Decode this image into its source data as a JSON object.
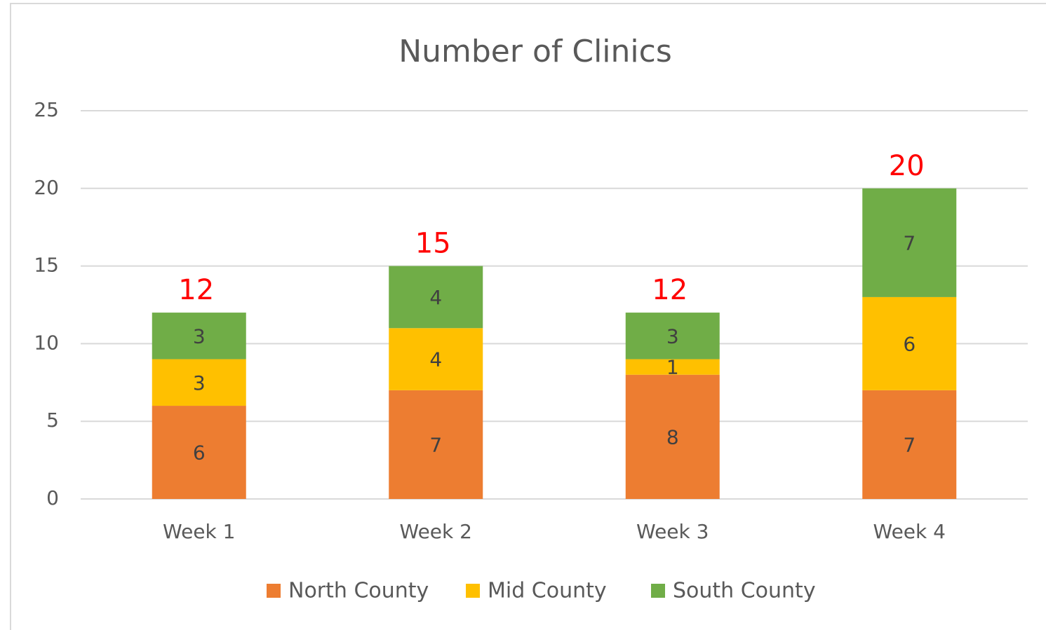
{
  "chart_data": {
    "type": "stacked_bar",
    "title": "Number of Clinics",
    "categories": [
      "Week 1",
      "Week 2",
      "Week 3",
      "Week 4"
    ],
    "series": [
      {
        "name": "North County",
        "color": "#ed7d31",
        "values": [
          6,
          7,
          8,
          7
        ]
      },
      {
        "name": "Mid County",
        "color": "#ffc000",
        "values": [
          3,
          4,
          1,
          6
        ]
      },
      {
        "name": "South County",
        "color": "#70ad47",
        "values": [
          3,
          4,
          3,
          7
        ]
      }
    ],
    "totals": [
      12,
      15,
      12,
      20
    ],
    "totals_color": "#ff0000",
    "ylim": [
      0,
      25
    ],
    "yticks": [
      0,
      5,
      10,
      15,
      20,
      25
    ],
    "grid": true,
    "legend": "bottom"
  }
}
